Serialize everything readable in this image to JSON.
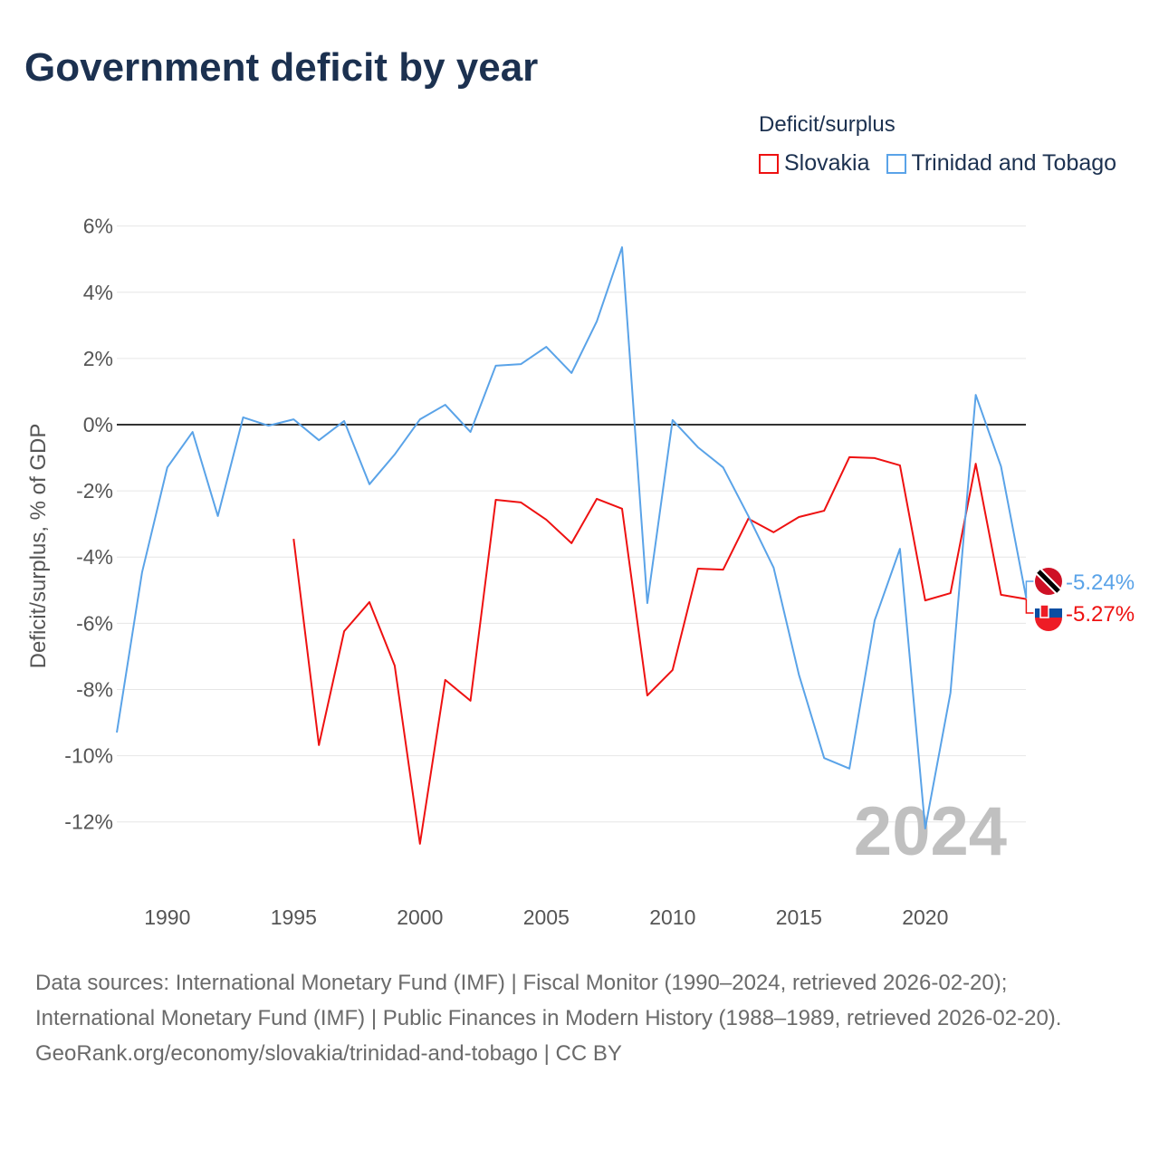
{
  "title": "Government deficit by year",
  "chart_data": {
    "type": "line",
    "title": "Government deficit by year",
    "xlabel": "",
    "ylabel": "Deficit/surplus, % of GDP",
    "legend_title": "Deficit/surplus",
    "legend_position": "top-right",
    "xlim": [
      1988,
      2024
    ],
    "ylim": [
      -13.5,
      6.5
    ],
    "yticks": [
      6,
      4,
      2,
      0,
      -2,
      -4,
      -6,
      -8,
      -10,
      -12
    ],
    "ytick_labels": [
      "6%",
      "4%",
      "2%",
      "0%",
      "-2%",
      "-4%",
      "-6%",
      "-8%",
      "-10%",
      "-12%"
    ],
    "xticks": [
      1990,
      1995,
      2000,
      2005,
      2010,
      2015,
      2020
    ],
    "xtick_labels": [
      "1990",
      "1995",
      "2000",
      "2005",
      "2010",
      "2015",
      "2020"
    ],
    "year_watermark": "2024",
    "series": [
      {
        "name": "Slovakia",
        "color": "#ee1111",
        "end_label": "-5.27%",
        "x": [
          1995,
          1996,
          1997,
          1998,
          1999,
          2000,
          2001,
          2002,
          2003,
          2004,
          2005,
          2006,
          2007,
          2008,
          2009,
          2010,
          2011,
          2012,
          2013,
          2014,
          2015,
          2016,
          2017,
          2018,
          2019,
          2020,
          2021,
          2022,
          2023,
          2024
        ],
        "values": [
          -3.45,
          -9.68,
          -6.24,
          -5.36,
          -7.28,
          -12.66,
          -7.71,
          -8.34,
          -2.27,
          -2.35,
          -2.87,
          -3.58,
          -2.24,
          -2.54,
          -8.18,
          -7.41,
          -4.35,
          -4.38,
          -2.84,
          -3.25,
          -2.79,
          -2.6,
          -0.98,
          -1.01,
          -1.23,
          -5.31,
          -5.09,
          -1.18,
          -5.14,
          -5.27
        ]
      },
      {
        "name": "Trinidad and Tobago",
        "color": "#5aa3e8",
        "end_label": "-5.24%",
        "x": [
          1988,
          1989,
          1990,
          1991,
          1992,
          1993,
          1994,
          1995,
          1996,
          1997,
          1998,
          1999,
          2000,
          2001,
          2002,
          2003,
          2004,
          2005,
          2006,
          2007,
          2008,
          2009,
          2010,
          2011,
          2012,
          2013,
          2014,
          2015,
          2016,
          2017,
          2018,
          2019,
          2020,
          2021,
          2022,
          2023,
          2024
        ],
        "values": [
          -9.3,
          -4.46,
          -1.29,
          -0.22,
          -2.76,
          0.22,
          -0.03,
          0.16,
          -0.47,
          0.11,
          -1.8,
          -0.9,
          0.16,
          0.6,
          -0.22,
          1.78,
          1.83,
          2.35,
          1.56,
          3.12,
          5.36,
          -5.39,
          0.14,
          -0.68,
          -1.29,
          -2.76,
          -4.32,
          -7.55,
          -10.07,
          -10.39,
          -5.91,
          -3.75,
          -12.2,
          -8.1,
          0.9,
          -1.26,
          -5.24
        ]
      }
    ]
  },
  "footer": {
    "sources": "Data sources: International Monetary Fund (IMF) | Fiscal Monitor (1990–2024, retrieved 2026-02-20); International Monetary Fund (IMF) | Public Finances in Modern History (1988–1989, retrieved 2026-02-20).",
    "link": "GeoRank.org/economy/slovakia/trinidad-and-tobago | CC BY"
  }
}
